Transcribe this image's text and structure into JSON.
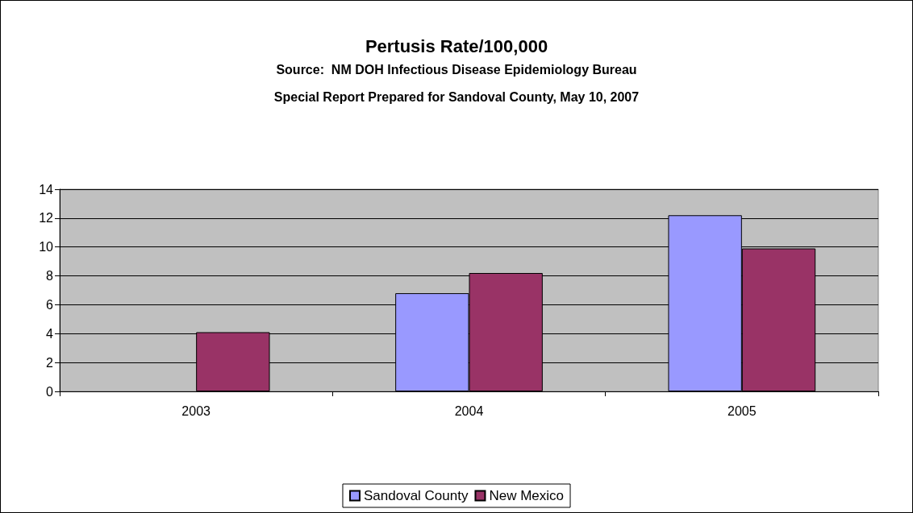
{
  "chart_data": {
    "type": "bar",
    "title": "Pertusis Rate/100,000",
    "subtitle": "Source:  NM DOH Infectious Disease Epidemiology Bureau",
    "annotations": [
      "Special Report Prepared for Sandoval County, May 10, 2007"
    ],
    "categories": [
      "2003",
      "2004",
      "2005"
    ],
    "series": [
      {
        "name": "Sandoval County",
        "color": "#9999ff",
        "values": [
          null,
          6.8,
          12.2
        ]
      },
      {
        "name": "New Mexico",
        "color": "#993366",
        "values": [
          4.1,
          8.2,
          9.9
        ]
      }
    ],
    "ylim": [
      0,
      14
    ],
    "yticks": [
      0,
      2,
      4,
      6,
      8,
      10,
      12,
      14
    ],
    "grid": "y",
    "legend": "bottom"
  }
}
